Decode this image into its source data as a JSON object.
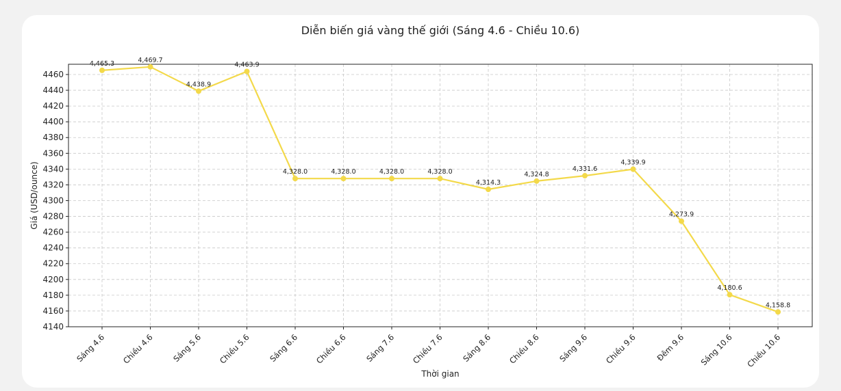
{
  "chart_data": {
    "type": "line",
    "title": "Diễn biến giá vàng thế giới (Sáng 4.6 - Chiều 10.6)",
    "xlabel": "Thời gian",
    "ylabel": "Giá (USD/ounce)",
    "categories": [
      "Sáng 4.6",
      "Chiều 4.6",
      "Sáng 5.6",
      "Chiều 5.6",
      "Sáng 6.6",
      "Chiều 6.6",
      "Sáng 7.6",
      "Chiều 7.6",
      "Sáng 8.6",
      "Chiều 8.6",
      "Sáng 9.6",
      "Chiều 9.6",
      "Đêm 9.6",
      "Sáng 10.6",
      "Chiều 10.6"
    ],
    "series": [
      {
        "values": [
          4465.3,
          4469.7,
          4438.9,
          4463.9,
          4328.0,
          4328.0,
          4328.0,
          4328.0,
          4314.3,
          4324.8,
          4331.6,
          4339.9,
          4273.9,
          4180.6,
          4158.8
        ],
        "data_labels": [
          "4,465.3",
          "4,469.7",
          "4,438.9",
          "4,463.9",
          "4,328.0",
          "4,328.0",
          "4,328.0",
          "4,328.0",
          "4,314.3",
          "4,324.8",
          "4,331.6",
          "4,339.9",
          "4,273.9",
          "4,180.6",
          "4,158.8"
        ]
      }
    ],
    "yticks": [
      "4140",
      "4160",
      "4180",
      "4200",
      "4220",
      "4240",
      "4260",
      "4280",
      "4300",
      "4320",
      "4340",
      "4360",
      "4380",
      "4400",
      "4420",
      "4440",
      "4460"
    ],
    "ylim": [
      4140,
      4473
    ],
    "grid": true,
    "line_color": "#f3d94a",
    "marker_color": "#f3d94a"
  }
}
